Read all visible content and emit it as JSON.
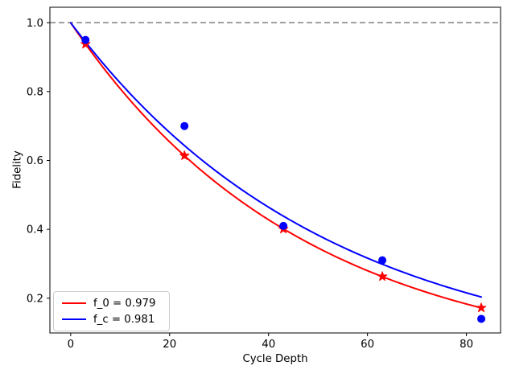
{
  "chart_data": {
    "type": "line",
    "title": "",
    "xlabel": "Cycle Depth",
    "ylabel": "Fidelity",
    "xlim": [
      -4.2,
      86.9
    ],
    "ylim": [
      0.099,
      1.045
    ],
    "xticks": [
      0,
      20,
      40,
      60,
      80
    ],
    "yticks": [
      0.2,
      0.4,
      0.6,
      0.8,
      1.0
    ],
    "grid": false,
    "reference_line": {
      "y": 1.0,
      "style": "dashed",
      "color": "#7f7f7f"
    },
    "legend": {
      "position": "lower-left",
      "entries": [
        {
          "label": "f_0 = 0.979",
          "color": "#ff0000"
        },
        {
          "label": "f_c = 0.981",
          "color": "#0000ff"
        }
      ]
    },
    "series": [
      {
        "name": "f_0 fit curve",
        "type": "curve",
        "curve": "exponential-decay",
        "color": "#ff0000",
        "amplitude": 1.0,
        "decay": 0.979,
        "x_start": 0,
        "x_end": 83
      },
      {
        "name": "f_c fit curve",
        "type": "curve",
        "curve": "exponential-decay",
        "color": "#0000ff",
        "amplitude": 1.0,
        "decay": 0.981,
        "x_start": 0,
        "x_end": 83
      },
      {
        "name": "f_0 data points",
        "type": "scatter",
        "marker": "star",
        "color": "#ff0000",
        "x": [
          3,
          23,
          43,
          63,
          83
        ],
        "y": [
          0.938,
          0.614,
          0.401,
          0.263,
          0.172
        ]
      },
      {
        "name": "f_c data points",
        "type": "scatter",
        "marker": "circle",
        "color": "#0000ff",
        "x": [
          3,
          23,
          43,
          63,
          83
        ],
        "y": [
          0.95,
          0.7,
          0.41,
          0.31,
          0.14
        ]
      }
    ]
  },
  "colors": {
    "axis": "#000000",
    "background": "#ffffff",
    "reference_gray": "#7f7f7f",
    "series_red": "#ff0000",
    "series_blue": "#0000ff",
    "legend_border": "#cccccc"
  }
}
